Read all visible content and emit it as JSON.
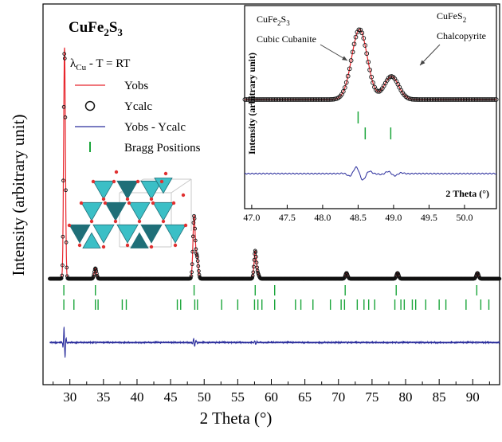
{
  "page": {
    "compound_title": "CuFe2S3",
    "compound_title_parts": [
      "CuFe",
      "2",
      "S",
      "3"
    ],
    "radiation_parts": [
      "λ",
      "Cu",
      " - T = RT"
    ]
  },
  "colors": {
    "observed": "#e8262d",
    "calculated": "#111111",
    "difference": "#2a2d9c",
    "bragg": "#1aa53a",
    "structure_face": "#3bbfc6",
    "structure_dark": "#1f6f78",
    "atom": "#e03030"
  },
  "legend": {
    "items": [
      {
        "label": "Yobs",
        "marker": "line",
        "color_key": "observed"
      },
      {
        "label": "Ycalc",
        "marker": "circle",
        "color_key": "calculated"
      },
      {
        "label": "Yobs - Ycalc",
        "marker": "line",
        "color_key": "difference"
      },
      {
        "label": "Bragg Positions",
        "marker": "bar",
        "color_key": "bragg"
      }
    ]
  },
  "chart_data": [
    {
      "type": "line",
      "name": "main-pattern",
      "xlabel": "2 Theta (°)",
      "ylabel": "Intensity (arbitrary unit)",
      "xlim": [
        26.0,
        94.0
      ],
      "xticks": [
        30,
        35,
        40,
        45,
        50,
        55,
        60,
        65,
        70,
        75,
        80,
        85,
        90
      ],
      "xtick_labels": [
        "30",
        "35",
        "40",
        "45",
        "50",
        "55",
        "60",
        "65",
        "70",
        "75",
        "80",
        "85",
        "90"
      ],
      "y_ticks_labeled": false,
      "legend_position": "top-left",
      "grid": false,
      "peaks": [
        {
          "x": 29.2,
          "height": 1.0
        },
        {
          "x": 33.8,
          "height": 0.045
        },
        {
          "x": 48.5,
          "height": 0.27
        },
        {
          "x": 48.95,
          "height": 0.09
        },
        {
          "x": 57.6,
          "height": 0.12
        },
        {
          "x": 58.0,
          "height": 0.02
        },
        {
          "x": 71.2,
          "height": 0.025
        },
        {
          "x": 78.8,
          "height": 0.025
        },
        {
          "x": 90.7,
          "height": 0.025
        }
      ],
      "bragg_row1": [
        29.1,
        33.8,
        48.5,
        57.6,
        60.5,
        71.0,
        78.6,
        90.6
      ],
      "bragg_row2": [
        29.1,
        30.6,
        33.8,
        34.2,
        37.8,
        38.4,
        46.0,
        46.5,
        48.6,
        49.0,
        52.6,
        55.0,
        57.5,
        58.0,
        58.6,
        60.5,
        63.6,
        64.4,
        66.2,
        68.8,
        70.4,
        70.9,
        72.8,
        73.8,
        74.5,
        75.4,
        78.4,
        79.3,
        79.8,
        81.0,
        81.5,
        83.0,
        85.0,
        86.0,
        89.0,
        91.2,
        92.4
      ]
    },
    {
      "type": "line",
      "name": "inset-pattern",
      "xlabel": "2 Theta (°)",
      "ylabel": "Intensity (arbitrary unit)",
      "xlim": [
        46.9,
        50.45
      ],
      "xticks": [
        47.0,
        47.5,
        48.0,
        48.5,
        49.0,
        49.5,
        50.0
      ],
      "xtick_labels": [
        "47.0",
        "47.5",
        "48.0",
        "48.5",
        "49.0",
        "49.5",
        "50.0"
      ],
      "peaks": [
        {
          "x": 48.52,
          "height": 1.0
        },
        {
          "x": 48.97,
          "height": 0.33
        }
      ],
      "bragg_cubanite": [
        48.5
      ],
      "bragg_chalcopyrite": [
        48.6,
        48.96
      ],
      "annotations": [
        {
          "label_parts": [
            "CuFe",
            "2",
            "S",
            "3"
          ],
          "sublabel": "Cubic Cubanite",
          "target_x": 48.45
        },
        {
          "label_parts": [
            "CuFeS",
            "2"
          ],
          "sublabel": "Chalcopyrite",
          "target_x": 49.02
        }
      ]
    }
  ]
}
